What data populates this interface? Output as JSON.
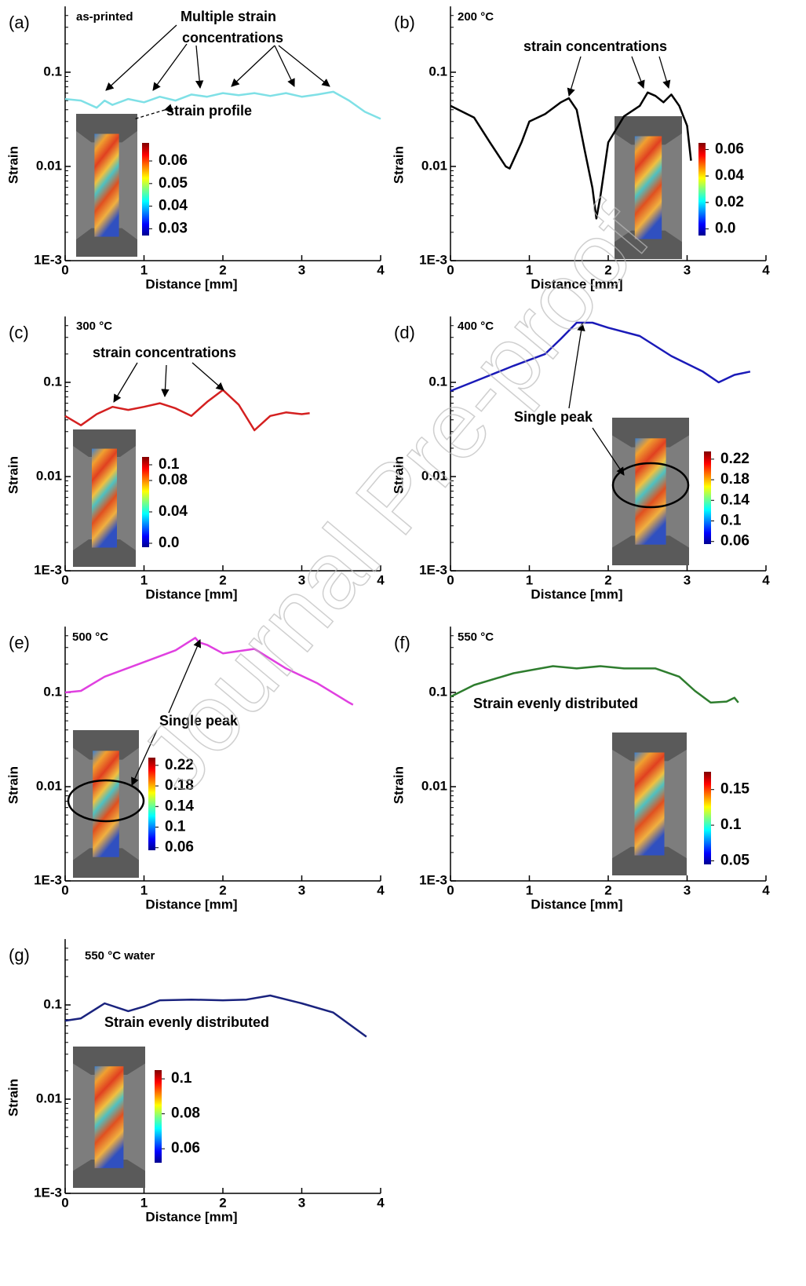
{
  "watermark": "Journal Pre-proof",
  "chart_data": [
    {
      "type": "line",
      "title": "(a)",
      "subtitle": "as-printed",
      "xlabel": "Distance [mm]",
      "ylabel": "Strain",
      "yscale": "log",
      "xlim": [
        0,
        4
      ],
      "ylim": [
        0.001,
        0.5
      ],
      "xticks": [
        0,
        1,
        2,
        3,
        4
      ],
      "yticks": [
        {
          "value": 0.001,
          "label": "1E-3"
        },
        0.01,
        0.1
      ],
      "annotations": [
        "Multiple strain",
        "concentrations",
        "strain profile"
      ],
      "color": "#7fe0e6",
      "x": [
        0,
        0.2,
        0.4,
        0.5,
        0.6,
        0.8,
        1.0,
        1.2,
        1.4,
        1.6,
        1.8,
        2.0,
        2.2,
        2.4,
        2.6,
        2.8,
        3.0,
        3.2,
        3.4,
        3.6,
        3.8,
        4.0
      ],
      "values": [
        0.052,
        0.05,
        0.042,
        0.05,
        0.045,
        0.052,
        0.048,
        0.055,
        0.05,
        0.058,
        0.055,
        0.06,
        0.057,
        0.06,
        0.056,
        0.06,
        0.055,
        0.058,
        0.062,
        0.05,
        0.038,
        0.032
      ],
      "colorbar": {
        "lim": [
          0.027,
          0.068
        ],
        "ticks": [
          0.06,
          0.05,
          0.04,
          0.03
        ]
      }
    },
    {
      "type": "line",
      "title": "(b)",
      "subtitle": "200 °C",
      "xlabel": "Distance [mm]",
      "ylabel": "Strain",
      "yscale": "log",
      "xlim": [
        0,
        4
      ],
      "ylim": [
        0.001,
        0.5
      ],
      "xticks": [
        0,
        1,
        2,
        3,
        4
      ],
      "yticks": [
        {
          "value": 0.001,
          "label": "1E-3"
        },
        0.01,
        0.1
      ],
      "annotations": [
        "strain concentrations"
      ],
      "color": "#000000",
      "x": [
        0,
        0.3,
        0.5,
        0.7,
        0.75,
        0.9,
        1.0,
        1.2,
        1.4,
        1.5,
        1.6,
        1.7,
        1.8,
        1.85,
        1.9,
        2.0,
        2.2,
        2.4,
        2.5,
        2.6,
        2.7,
        2.8,
        2.9,
        3.0,
        3.05
      ],
      "values": [
        0.044,
        0.033,
        0.018,
        0.01,
        0.0095,
        0.018,
        0.03,
        0.036,
        0.048,
        0.053,
        0.04,
        0.015,
        0.0059,
        0.0028,
        0.0048,
        0.018,
        0.034,
        0.044,
        0.061,
        0.056,
        0.048,
        0.058,
        0.044,
        0.027,
        0.0115
      ],
      "colorbar": {
        "lim": [
          -0.005,
          0.065
        ],
        "ticks": [
          0.06,
          0.04,
          0.02,
          {
            "value": 0,
            "label": "0.0"
          }
        ]
      }
    },
    {
      "type": "line",
      "title": "(c)",
      "subtitle": "300 °C",
      "xlabel": "Distance [mm]",
      "ylabel": "Strain",
      "yscale": "log",
      "xlim": [
        0,
        4
      ],
      "ylim": [
        0.001,
        0.5
      ],
      "xticks": [
        0,
        1,
        2,
        3,
        4
      ],
      "yticks": [
        {
          "value": 0.001,
          "label": "1E-3"
        },
        0.01,
        0.1
      ],
      "annotations": [
        "strain concentrations"
      ],
      "color": "#d42020",
      "x": [
        0,
        0.2,
        0.4,
        0.6,
        0.8,
        1.0,
        1.2,
        1.4,
        1.6,
        1.8,
        2.0,
        2.2,
        2.4,
        2.6,
        2.8,
        3.0,
        3.1
      ],
      "values": [
        0.044,
        0.035,
        0.046,
        0.055,
        0.051,
        0.055,
        0.06,
        0.053,
        0.044,
        0.062,
        0.083,
        0.058,
        0.031,
        0.044,
        0.048,
        0.046,
        0.047
      ],
      "colorbar": {
        "lim": [
          -0.005,
          0.11
        ],
        "ticks": [
          0.1,
          0.08,
          0.04,
          {
            "value": 0,
            "label": "0.0"
          }
        ]
      }
    },
    {
      "type": "line",
      "title": "(d)",
      "subtitle": "400 °C",
      "xlabel": "Distance [mm]",
      "ylabel": "Strain",
      "yscale": "log",
      "xlim": [
        0,
        4
      ],
      "ylim": [
        0.001,
        0.5
      ],
      "xticks": [
        0,
        1,
        2,
        3,
        4
      ],
      "yticks": [
        {
          "value": 0.001,
          "label": "1E-3"
        },
        0.01,
        0.1
      ],
      "annotations": [
        "Single peak"
      ],
      "color": "#1a1ab8",
      "x": [
        0,
        0.4,
        0.8,
        1.2,
        1.4,
        1.6,
        1.8,
        2.0,
        2.4,
        2.8,
        3.2,
        3.4,
        3.6,
        3.8
      ],
      "values": [
        0.081,
        0.11,
        0.15,
        0.2,
        0.29,
        0.43,
        0.43,
        0.38,
        0.31,
        0.19,
        0.13,
        0.1,
        0.12,
        0.13
      ],
      "colorbar": {
        "lim": [
          0.055,
          0.235
        ],
        "ticks": [
          0.22,
          0.18,
          0.14,
          0.1,
          0.06
        ]
      }
    },
    {
      "type": "line",
      "title": "(e)",
      "subtitle": "500 °C",
      "xlabel": "Distance [mm]",
      "ylabel": "Strain",
      "yscale": "log",
      "xlim": [
        0,
        4
      ],
      "ylim": [
        0.001,
        0.5
      ],
      "xticks": [
        0,
        1,
        2,
        3,
        4
      ],
      "yticks": [
        {
          "value": 0.001,
          "label": "1E-3"
        },
        0.01,
        0.1
      ],
      "annotations": [
        "Single peak"
      ],
      "color": "#e040e0",
      "x": [
        0,
        0.2,
        0.5,
        1.0,
        1.4,
        1.65,
        1.7,
        1.8,
        2.0,
        2.4,
        2.8,
        3.2,
        3.6,
        3.65
      ],
      "values": [
        0.1,
        0.104,
        0.147,
        0.21,
        0.28,
        0.38,
        0.34,
        0.32,
        0.26,
        0.29,
        0.18,
        0.125,
        0.078,
        0.074
      ],
      "colorbar": {
        "lim": [
          0.055,
          0.235
        ],
        "ticks": [
          0.22,
          0.18,
          0.14,
          0.1,
          0.06
        ]
      }
    },
    {
      "type": "line",
      "title": "(f)",
      "subtitle": "550 °C",
      "xlabel": "Distance [mm]",
      "ylabel": "Strain",
      "yscale": "log",
      "xlim": [
        0,
        4
      ],
      "ylim": [
        0.001,
        0.5
      ],
      "xticks": [
        0,
        1,
        2,
        3,
        4
      ],
      "yticks": [
        {
          "value": 0.001,
          "label": "1E-3"
        },
        0.01,
        0.1
      ],
      "annotations": [
        "Strain evenly distributed"
      ],
      "color": "#2e7d2e",
      "x": [
        0,
        0.3,
        0.8,
        1.3,
        1.6,
        1.9,
        2.2,
        2.6,
        2.9,
        3.1,
        3.3,
        3.5,
        3.6,
        3.65
      ],
      "values": [
        0.09,
        0.12,
        0.16,
        0.19,
        0.18,
        0.19,
        0.18,
        0.18,
        0.147,
        0.104,
        0.078,
        0.08,
        0.088,
        0.078
      ],
      "colorbar": {
        "lim": [
          0.045,
          0.175
        ],
        "ticks": [
          0.15,
          0.1,
          0.05
        ]
      }
    },
    {
      "type": "line",
      "title": "(g)",
      "subtitle": "550 °C water",
      "xlabel": "Distance [mm]",
      "ylabel": "Strain",
      "yscale": "log",
      "xlim": [
        0,
        4
      ],
      "ylim": [
        0.001,
        0.5
      ],
      "xticks": [
        0,
        1,
        2,
        3,
        4
      ],
      "yticks": [
        {
          "value": 0.001,
          "label": "1E-3"
        },
        0.01,
        0.1
      ],
      "annotations": [
        "Strain evenly distributed"
      ],
      "color": "#1a237e",
      "x": [
        0,
        0.2,
        0.5,
        0.8,
        1.0,
        1.2,
        1.6,
        2.0,
        2.3,
        2.6,
        3.0,
        3.4,
        3.82
      ],
      "values": [
        0.068,
        0.072,
        0.104,
        0.086,
        0.096,
        0.112,
        0.114,
        0.112,
        0.114,
        0.126,
        0.104,
        0.083,
        0.046
      ],
      "colorbar": {
        "lim": [
          0.052,
          0.105
        ],
        "ticks": [
          0.1,
          0.08,
          0.06
        ]
      }
    }
  ]
}
